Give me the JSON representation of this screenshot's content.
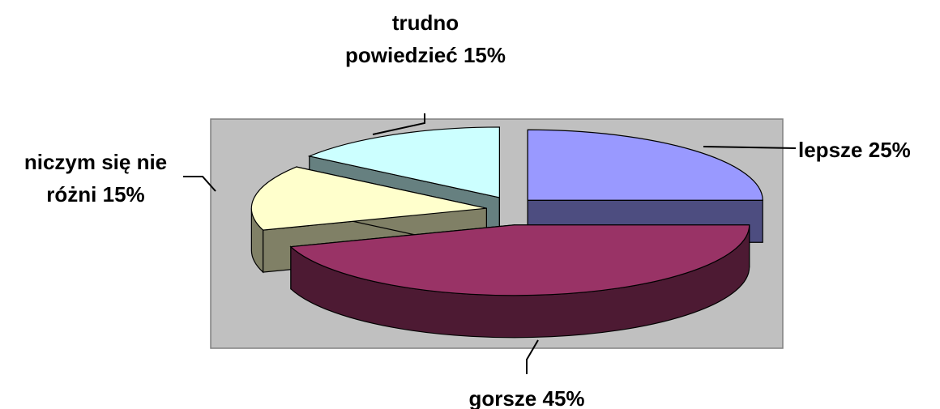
{
  "chart_data": {
    "type": "pie3d",
    "categories": [
      "lepsze",
      "gorsze",
      "niczym się nie różni",
      "trudno powiedzieć"
    ],
    "values": [
      25,
      45,
      15,
      15
    ],
    "value_labels": [
      "25%",
      "45%",
      "15%",
      "15%"
    ],
    "colors": [
      "#9999ff",
      "#993366",
      "#ffffcc",
      "#ccffff"
    ]
  }
}
